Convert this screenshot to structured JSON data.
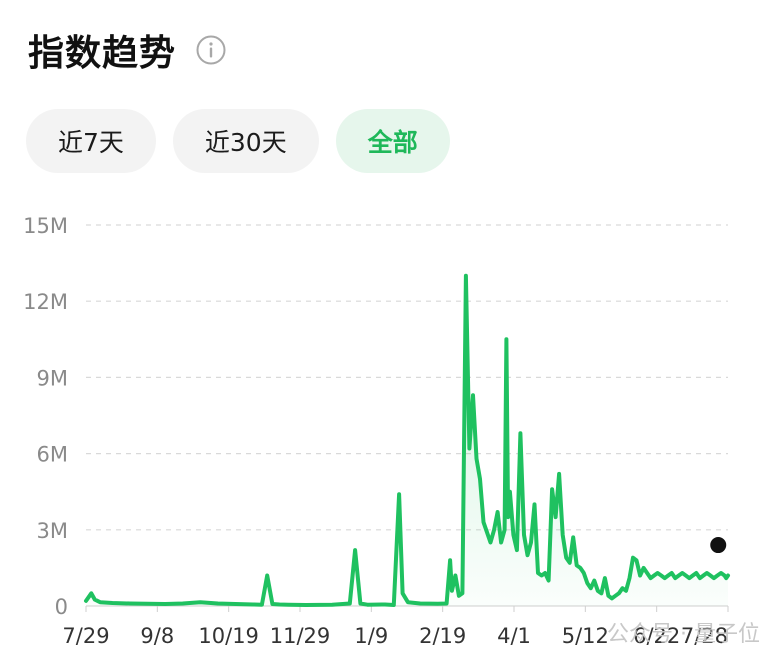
{
  "header": {
    "title": "指数趋势",
    "info_icon": "info-circle-icon"
  },
  "tabs": [
    {
      "label": "近7天",
      "active": false
    },
    {
      "label": "近30天",
      "active": false
    },
    {
      "label": "全部",
      "active": true
    }
  ],
  "watermark": "公众号 · 量子位",
  "colors": {
    "accent": "#1fc160",
    "accent_fill": "#1fc160",
    "grid": "#d9d9d9",
    "tick": "#8a8a8a",
    "marker": "#111111"
  },
  "chart_data": {
    "type": "area",
    "title": "",
    "xlabel": "",
    "ylabel": "",
    "ylim": [
      0,
      15000000
    ],
    "y_ticks": [
      0,
      3000000,
      6000000,
      9000000,
      12000000,
      15000000
    ],
    "y_tick_labels": [
      "0",
      "3M",
      "6M",
      "9M",
      "12M",
      "15M"
    ],
    "x_tick_labels": [
      "7/29",
      "9/8",
      "10/19",
      "11/29",
      "1/9",
      "2/19",
      "4/1",
      "5/12",
      "6/22",
      "7/28"
    ],
    "grid": true,
    "end_marker": true,
    "series": [
      {
        "x": [
          0,
          3,
          5,
          8,
          15,
          25,
          35,
          45,
          55,
          65,
          75,
          85,
          95,
          100,
          103,
          106,
          110,
          115,
          125,
          140,
          150,
          153,
          156,
          160,
          170,
          175,
          178,
          180,
          183,
          190,
          200,
          205,
          207,
          208,
          210,
          212,
          214,
          216,
          218,
          220,
          222,
          224,
          226,
          228,
          230,
          232,
          234,
          236,
          238,
          239,
          240,
          241,
          243,
          245,
          247,
          249,
          251,
          253,
          255,
          257,
          259,
          261,
          263,
          265,
          267,
          269,
          271,
          273,
          275,
          277,
          279,
          281,
          283,
          285,
          287,
          289,
          291,
          293,
          295,
          297,
          299,
          301,
          303,
          305,
          307,
          309,
          311,
          313,
          315,
          317,
          319,
          321,
          323,
          325,
          327,
          329,
          331,
          333,
          335,
          337,
          339,
          341,
          343,
          345,
          347,
          349,
          351,
          353,
          355,
          357,
          359,
          361,
          363,
          364,
          365
        ],
        "values": [
          200000,
          500000,
          250000,
          150000,
          120000,
          100000,
          90000,
          80000,
          100000,
          150000,
          100000,
          80000,
          60000,
          50000,
          1200000,
          80000,
          60000,
          50000,
          40000,
          50000,
          100000,
          2200000,
          100000,
          50000,
          60000,
          40000,
          4400000,
          500000,
          150000,
          100000,
          90000,
          100000,
          1800000,
          600000,
          1200000,
          400000,
          500000,
          13000000,
          6200000,
          8300000,
          5800000,
          5000000,
          3300000,
          2900000,
          2500000,
          3000000,
          3700000,
          2500000,
          3000000,
          10500000,
          3500000,
          4500000,
          2800000,
          2200000,
          6800000,
          2800000,
          2000000,
          2500000,
          4000000,
          1300000,
          1200000,
          1300000,
          1000000,
          4600000,
          3500000,
          5200000,
          2800000,
          1900000,
          1700000,
          2700000,
          1600000,
          1500000,
          1300000,
          900000,
          700000,
          1000000,
          600000,
          500000,
          1100000,
          400000,
          300000,
          400000,
          500000,
          700000,
          600000,
          1100000,
          1900000,
          1800000,
          1200000,
          1500000,
          1300000,
          1100000,
          1200000,
          1300000,
          1200000,
          1100000,
          1200000,
          1300000,
          1100000,
          1200000,
          1300000,
          1200000,
          1100000,
          1200000,
          1300000,
          1100000,
          1200000,
          1300000,
          1200000,
          1100000,
          1200000,
          1300000,
          1200000,
          1100000,
          1200000
        ]
      }
    ]
  }
}
